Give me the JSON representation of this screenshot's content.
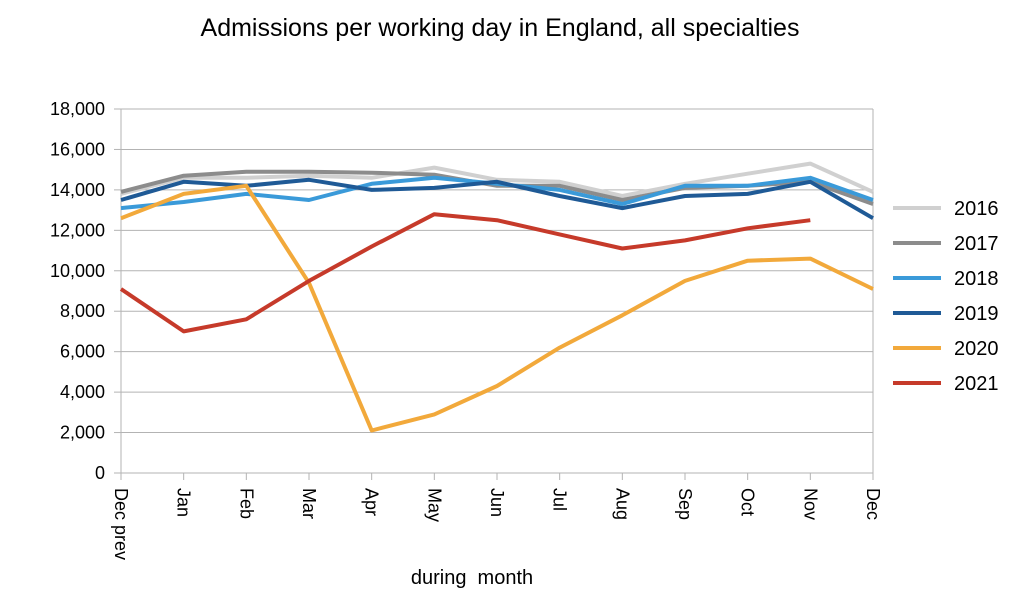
{
  "chart_data": {
    "type": "line",
    "title": "Admissions per working day in England, all specialties",
    "xlabel": "during  month",
    "ylabel": "",
    "ylim": [
      0,
      18000
    ],
    "yticks": [
      0,
      2000,
      4000,
      6000,
      8000,
      10000,
      12000,
      14000,
      16000,
      18000
    ],
    "ytick_labels": [
      "0",
      "2,000",
      "4,000",
      "6,000",
      "8,000",
      "10,000",
      "12,000",
      "14,000",
      "16,000",
      "18,000"
    ],
    "categories": [
      "Dec prev",
      "Jan",
      "Feb",
      "Mar",
      "Apr",
      "May",
      "Jun",
      "Jul",
      "Aug",
      "Sep",
      "Oct",
      "Nov",
      "Dec"
    ],
    "grid": true,
    "legend_position": "right",
    "series": [
      {
        "name": "2016",
        "color": "#d0d0d0",
        "values": [
          13800,
          14600,
          14600,
          14700,
          14600,
          15100,
          14500,
          14400,
          13700,
          14300,
          14800,
          15300,
          13900
        ]
      },
      {
        "name": "2017",
        "color": "#8c8c8c",
        "values": [
          13900,
          14700,
          14900,
          14900,
          14850,
          14750,
          14200,
          14200,
          13500,
          14100,
          14200,
          14400,
          13300
        ]
      },
      {
        "name": "2018",
        "color": "#3a9ad9",
        "values": [
          13100,
          13400,
          13800,
          13500,
          14300,
          14600,
          14300,
          14000,
          13300,
          14200,
          14200,
          14600,
          13500
        ]
      },
      {
        "name": "2019",
        "color": "#1f5a96",
        "values": [
          13500,
          14400,
          14200,
          14500,
          14000,
          14100,
          14400,
          13700,
          13100,
          13700,
          13800,
          14400,
          12600
        ]
      },
      {
        "name": "2020",
        "color": "#f2a93b",
        "values": [
          12600,
          13800,
          14200,
          9400,
          2100,
          2900,
          4300,
          6200,
          7800,
          9500,
          10500,
          10600,
          9100
        ]
      },
      {
        "name": "2021",
        "color": "#c63a2a",
        "values": [
          9100,
          7000,
          7600,
          9500,
          11200,
          12800,
          12500,
          11800,
          11100,
          11500,
          12100,
          12500,
          null
        ]
      }
    ]
  }
}
